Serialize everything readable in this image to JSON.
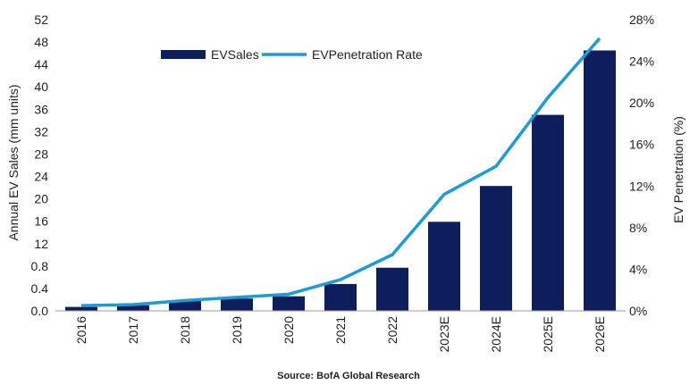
{
  "chart_data": {
    "type": "bar",
    "categories": [
      "2016",
      "2017",
      "2018",
      "2019",
      "2020",
      "2021",
      "2022",
      "2023E",
      "2024E",
      "2025E",
      "2026E"
    ],
    "series": [
      {
        "name": "EVSales",
        "type": "bar",
        "axis": "left",
        "color": "#0e1d5c",
        "values": [
          0.7,
          1.0,
          1.9,
          2.2,
          2.6,
          4.8,
          7.7,
          15.9,
          22.3,
          35.0,
          46.5
        ]
      },
      {
        "name": "EVPenetration Rate",
        "type": "line",
        "axis": "right",
        "color": "#1e9ad6",
        "values": [
          0.5,
          0.6,
          1.0,
          1.3,
          1.6,
          3.0,
          5.4,
          11.2,
          13.9,
          20.5,
          26.2
        ]
      }
    ],
    "ylabel": "Annual EV Sales (mm units)",
    "ylabel_right": "EV Penetration (%)",
    "ylim": [
      0,
      52
    ],
    "yticks": [
      "0.0",
      "0.4",
      "0.8",
      "12",
      "16",
      "20",
      "24",
      "28",
      "32",
      "36",
      "40",
      "44",
      "48",
      "52"
    ],
    "ylim_right": [
      0,
      28
    ],
    "yticks_right": [
      "0%",
      "4%",
      "8%",
      "12%",
      "16%",
      "20%",
      "24%",
      "28%"
    ],
    "legend": [
      "EVSales",
      "EVPenetration Rate"
    ],
    "legend_position": "top-left",
    "grid": false,
    "source": "Source: BofA Global Research"
  }
}
